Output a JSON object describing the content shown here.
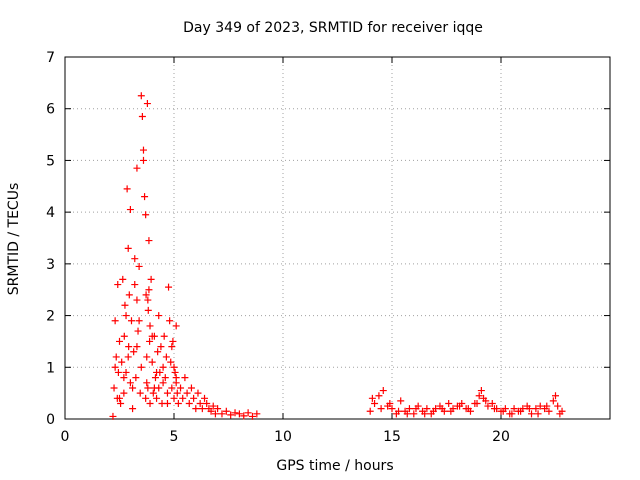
{
  "chart_data": {
    "type": "scatter",
    "title": "Day 349 of 2023, SRMTID for receiver iqqe",
    "xlabel": "GPS time / hours",
    "ylabel": "SRMTID / TECUs",
    "xlim": [
      0,
      25
    ],
    "ylim": [
      0,
      7
    ],
    "xticks": [
      0,
      5,
      10,
      15,
      20
    ],
    "yticks": [
      0,
      1,
      2,
      3,
      4,
      5,
      6,
      7
    ],
    "grid": true,
    "marker": "+",
    "series": [
      {
        "name": "SRMTID",
        "color": "#ff0000",
        "x": [
          2.2,
          2.25,
          2.3,
          2.35,
          2.4,
          2.42,
          2.45,
          2.5,
          2.55,
          2.6,
          2.65,
          2.7,
          2.72,
          2.75,
          2.8,
          2.85,
          2.9,
          2.92,
          2.95,
          3.0,
          3.05,
          3.1,
          3.15,
          3.2,
          3.25,
          3.3,
          3.35,
          3.4,
          3.45,
          3.5,
          3.55,
          3.6,
          3.65,
          3.7,
          3.72,
          3.75,
          3.78,
          3.8,
          3.82,
          3.85,
          3.88,
          3.9,
          3.95,
          4.0,
          4.05,
          4.1,
          4.15,
          4.2,
          4.25,
          4.3,
          4.35,
          4.4,
          4.45,
          4.5,
          4.55,
          4.6,
          4.65,
          4.7,
          4.75,
          4.8,
          4.85,
          4.9,
          4.95,
          5.0,
          5.05,
          5.1,
          5.15,
          5.2,
          5.3,
          5.4,
          5.5,
          5.6,
          5.7,
          5.8,
          5.9,
          6.0,
          6.1,
          6.2,
          6.3,
          6.4,
          6.5,
          6.6,
          6.7,
          6.8,
          6.9,
          7.0,
          7.2,
          7.4,
          7.6,
          7.8,
          8.0,
          8.2,
          8.4,
          8.6,
          8.8,
          2.3,
          2.5,
          2.7,
          2.9,
          3.1,
          3.3,
          3.5,
          3.7,
          3.9,
          4.1,
          4.3,
          4.5,
          4.7,
          4.9,
          5.1,
          3.0,
          3.2,
          3.4,
          3.6,
          3.8,
          4.0,
          4.2,
          2.8,
          3.3,
          3.75,
          3.85,
          5.0,
          5.1,
          14.0,
          14.2,
          14.4,
          14.6,
          14.8,
          15.0,
          15.2,
          15.4,
          15.6,
          15.8,
          16.0,
          16.2,
          16.4,
          16.6,
          16.8,
          17.0,
          17.2,
          17.4,
          17.6,
          17.8,
          18.0,
          18.2,
          18.4,
          18.6,
          18.8,
          19.0,
          19.1,
          19.2,
          19.4,
          19.6,
          19.8,
          20.0,
          20.2,
          20.4,
          20.6,
          20.8,
          21.0,
          21.2,
          21.4,
          21.6,
          21.8,
          22.0,
          22.2,
          22.4,
          22.5,
          22.6,
          22.8,
          14.1,
          14.5,
          14.9,
          15.3,
          15.7,
          16.1,
          16.5,
          16.9,
          17.3,
          17.7,
          18.1,
          18.5,
          18.9,
          19.3,
          19.7,
          20.1,
          20.5,
          20.9,
          21.3,
          21.7,
          22.1,
          22.7
        ],
        "y": [
          0.05,
          0.6,
          1.9,
          1.2,
          0.4,
          2.6,
          0.9,
          1.5,
          0.3,
          1.1,
          2.7,
          0.5,
          1.6,
          2.2,
          0.9,
          4.45,
          3.3,
          1.4,
          2.4,
          0.7,
          1.9,
          0.2,
          1.3,
          2.6,
          0.8,
          4.85,
          1.7,
          2.95,
          0.5,
          6.25,
          5.85,
          5.0,
          4.3,
          3.95,
          2.4,
          1.2,
          6.1,
          0.6,
          2.1,
          3.45,
          1.5,
          0.3,
          2.7,
          1.1,
          0.5,
          1.6,
          0.8,
          0.4,
          1.3,
          0.6,
          0.9,
          1.4,
          0.3,
          0.7,
          1.6,
          0.8,
          1.2,
          0.5,
          2.55,
          1.9,
          1.1,
          0.6,
          1.5,
          0.4,
          0.9,
          0.7,
          0.5,
          0.3,
          0.6,
          0.4,
          0.8,
          0.5,
          0.3,
          0.6,
          0.4,
          0.2,
          0.5,
          0.3,
          0.2,
          0.4,
          0.3,
          0.2,
          0.15,
          0.25,
          0.1,
          0.2,
          0.1,
          0.15,
          0.08,
          0.12,
          0.1,
          0.06,
          0.12,
          0.05,
          0.1,
          1.0,
          0.4,
          0.8,
          1.2,
          0.6,
          2.3,
          1.0,
          0.4,
          1.8,
          0.6,
          2.0,
          1.0,
          0.3,
          1.4,
          0.8,
          4.05,
          3.1,
          1.9,
          5.2,
          2.3,
          1.6,
          0.9,
          2.0,
          1.4,
          0.7,
          2.5,
          1.0,
          1.8,
          0.15,
          0.3,
          0.45,
          0.55,
          0.25,
          0.2,
          0.1,
          0.35,
          0.15,
          0.2,
          0.1,
          0.25,
          0.15,
          0.2,
          0.1,
          0.2,
          0.25,
          0.15,
          0.3,
          0.2,
          0.25,
          0.3,
          0.2,
          0.15,
          0.3,
          0.45,
          0.55,
          0.4,
          0.25,
          0.3,
          0.2,
          0.15,
          0.2,
          0.1,
          0.2,
          0.15,
          0.2,
          0.25,
          0.1,
          0.2,
          0.25,
          0.2,
          0.15,
          0.35,
          0.45,
          0.25,
          0.15,
          0.4,
          0.2,
          0.3,
          0.15,
          0.1,
          0.2,
          0.1,
          0.15,
          0.2,
          0.15,
          0.25,
          0.2,
          0.3,
          0.35,
          0.2,
          0.15,
          0.1,
          0.15,
          0.2,
          0.1,
          0.25,
          0.1
        ]
      }
    ]
  }
}
